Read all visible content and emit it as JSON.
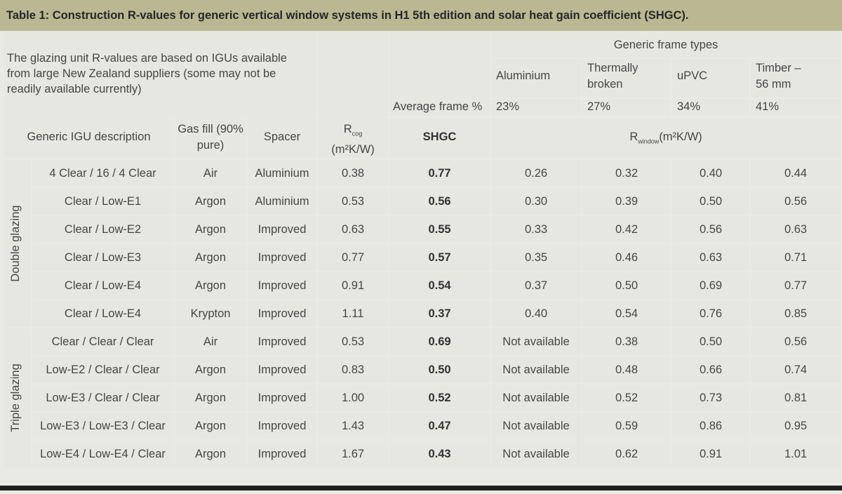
{
  "title": "Table 1: Construction R-values for generic vertical window systems in H1 5th edition and solar heat gain coefficient (SHGC).",
  "intro_text": "The glazing unit R-values are based on IGUs available from large New Zealand suppliers (some may not be readily available currently)",
  "frame_types_heading": "Generic frame types",
  "frame_types": [
    {
      "name": "Aluminium",
      "avg": "23%"
    },
    {
      "name": "Thermally broken",
      "avg": "27%"
    },
    {
      "name": "uPVC",
      "avg": "34%"
    },
    {
      "name": "Timber – 56 mm",
      "avg": "41%"
    }
  ],
  "average_frame_label": "Average frame %",
  "headers": {
    "igu_description": "Generic IGU description",
    "gas_fill": "Gas fill (90% pure)",
    "spacer": "Spacer",
    "rcog_main": "R",
    "rcog_sub": "cog",
    "rcog_unit": "(m²K/W)",
    "shgc": "SHGC",
    "rwindow_main": "R",
    "rwindow_sub": "window",
    "rwindow_unit": "(m²K/W)"
  },
  "groups": [
    {
      "label": "Double glazing",
      "rows": [
        {
          "desc": "4 Clear / 16 / 4 Clear",
          "gas": "Air",
          "spacer": "Aluminium",
          "rcog": "0.38",
          "shgc": "0.77",
          "alu": "0.26",
          "tb": "0.32",
          "upvc": "0.40",
          "timber": "0.44"
        },
        {
          "desc": "Clear / Low-E1",
          "gas": "Argon",
          "spacer": "Aluminium",
          "rcog": "0.53",
          "shgc": "0.56",
          "alu": "0.30",
          "tb": "0.39",
          "upvc": "0.50",
          "timber": "0.56"
        },
        {
          "desc": "Clear / Low-E2",
          "gas": "Argon",
          "spacer": "Improved",
          "rcog": "0.63",
          "shgc": "0.55",
          "alu": "0.33",
          "tb": "0.42",
          "upvc": "0.56",
          "timber": "0.63"
        },
        {
          "desc": "Clear / Low-E3",
          "gas": "Argon",
          "spacer": "Improved",
          "rcog": "0.77",
          "shgc": "0.57",
          "alu": "0.35",
          "tb": "0.46",
          "upvc": "0.63",
          "timber": "0.71"
        },
        {
          "desc": "Clear / Low-E4",
          "gas": "Argon",
          "spacer": "Improved",
          "rcog": "0.91",
          "shgc": "0.54",
          "alu": "0.37",
          "tb": "0.50",
          "upvc": "0.69",
          "timber": "0.77"
        },
        {
          "desc": "Clear / Low-E4",
          "gas": "Krypton",
          "spacer": "Improved",
          "rcog": "1.11",
          "shgc": "0.37",
          "alu": "0.40",
          "tb": "0.54",
          "upvc": "0.76",
          "timber": "0.85"
        }
      ]
    },
    {
      "label": "Triple glazing",
      "rows": [
        {
          "desc": "Clear / Clear / Clear",
          "gas": "Air",
          "spacer": "Improved",
          "rcog": "0.53",
          "shgc": "0.69",
          "alu": "Not available",
          "tb": "0.38",
          "upvc": "0.50",
          "timber": "0.56"
        },
        {
          "desc": "Low-E2 / Clear / Clear",
          "gas": "Argon",
          "spacer": "Improved",
          "rcog": "0.83",
          "shgc": "0.50",
          "alu": "Not available",
          "tb": "0.48",
          "upvc": "0.66",
          "timber": "0.74"
        },
        {
          "desc": "Low-E3 / Clear / Clear",
          "gas": "Argon",
          "spacer": "Improved",
          "rcog": "1.00",
          "shgc": "0.52",
          "alu": "Not available",
          "tb": "0.52",
          "upvc": "0.73",
          "timber": "0.81"
        },
        {
          "desc": "Low-E3 / Low-E3 / Clear",
          "gas": "Argon",
          "spacer": "Improved",
          "rcog": "1.43",
          "shgc": "0.47",
          "alu": "Not available",
          "tb": "0.59",
          "upvc": "0.86",
          "timber": "0.95"
        },
        {
          "desc": "Low-E4 / Low-E4 / Clear",
          "gas": "Argon",
          "spacer": "Improved",
          "rcog": "1.67",
          "shgc": "0.43",
          "alu": "Not available",
          "tb": "0.62",
          "upvc": "0.91",
          "timber": "1.01"
        }
      ]
    }
  ]
}
